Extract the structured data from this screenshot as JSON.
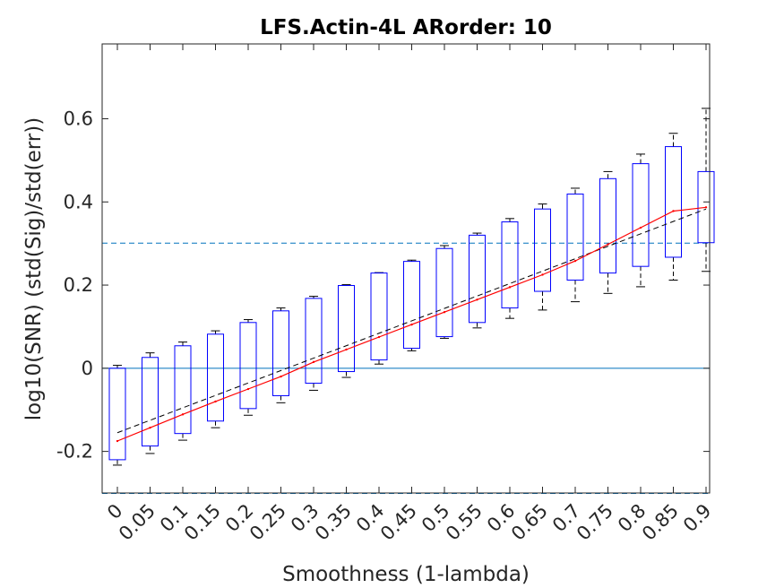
{
  "chart_data": {
    "type": "box",
    "title": "LFS.Actin-4L ARorder: 10",
    "xlabel": "Smoothness (1-lambda)",
    "ylabel": "log10(SNR) (std(Sig)/std(err))",
    "ylim": [
      -0.3,
      0.78
    ],
    "yticks": [
      "-0.2",
      "0",
      "0.2",
      "0.4",
      "0.6"
    ],
    "yticks_values": [
      -0.2,
      0,
      0.2,
      0.4,
      0.6
    ],
    "categories": [
      "0",
      "0.05",
      "0.1",
      "0.15",
      "0.2",
      "0.25",
      "0.3",
      "0.35",
      "0.4",
      "0.45",
      "0.5",
      "0.55",
      "0.6",
      "0.65",
      "0.7",
      "0.75",
      "0.8",
      "0.85",
      "0.9"
    ],
    "boxes": [
      {
        "whisker_low": -0.233,
        "q1": -0.22,
        "median": -0.175,
        "q3": 0.0,
        "whisker_high": 0.007
      },
      {
        "whisker_low": -0.205,
        "q1": -0.187,
        "median": -0.143,
        "q3": 0.026,
        "whisker_high": 0.037
      },
      {
        "whisker_low": -0.173,
        "q1": -0.157,
        "median": -0.111,
        "q3": 0.054,
        "whisker_high": 0.063
      },
      {
        "whisker_low": -0.143,
        "q1": -0.127,
        "median": -0.08,
        "q3": 0.082,
        "whisker_high": 0.09
      },
      {
        "whisker_low": -0.113,
        "q1": -0.097,
        "median": -0.05,
        "q3": 0.11,
        "whisker_high": 0.117
      },
      {
        "whisker_low": -0.083,
        "q1": -0.066,
        "median": -0.02,
        "q3": 0.138,
        "whisker_high": 0.145
      },
      {
        "whisker_low": -0.053,
        "q1": -0.036,
        "median": 0.015,
        "q3": 0.168,
        "whisker_high": 0.173
      },
      {
        "whisker_low": -0.022,
        "q1": -0.008,
        "median": 0.045,
        "q3": 0.199,
        "whisker_high": 0.201
      },
      {
        "whisker_low": 0.01,
        "q1": 0.02,
        "median": 0.075,
        "q3": 0.229,
        "whisker_high": 0.23
      },
      {
        "whisker_low": 0.042,
        "q1": 0.048,
        "median": 0.105,
        "q3": 0.257,
        "whisker_high": 0.26
      },
      {
        "whisker_low": 0.072,
        "q1": 0.076,
        "median": 0.135,
        "q3": 0.288,
        "whisker_high": 0.295
      },
      {
        "whisker_low": 0.097,
        "q1": 0.11,
        "median": 0.165,
        "q3": 0.32,
        "whisker_high": 0.325
      },
      {
        "whisker_low": 0.12,
        "q1": 0.145,
        "median": 0.195,
        "q3": 0.352,
        "whisker_high": 0.36
      },
      {
        "whisker_low": 0.14,
        "q1": 0.185,
        "median": 0.225,
        "q3": 0.383,
        "whisker_high": 0.395
      },
      {
        "whisker_low": 0.16,
        "q1": 0.212,
        "median": 0.258,
        "q3": 0.419,
        "whisker_high": 0.433
      },
      {
        "whisker_low": 0.18,
        "q1": 0.229,
        "median": 0.298,
        "q3": 0.456,
        "whisker_high": 0.473
      },
      {
        "whisker_low": 0.196,
        "q1": 0.245,
        "median": 0.338,
        "q3": 0.492,
        "whisker_high": 0.515
      },
      {
        "whisker_low": 0.212,
        "q1": 0.267,
        "median": 0.378,
        "q3": 0.533,
        "whisker_high": 0.565
      },
      {
        "whisker_low": 0.233,
        "q1": 0.302,
        "median": 0.387,
        "q3": 0.473,
        "whisker_high": 0.625
      }
    ],
    "median_line": [
      -0.175,
      -0.143,
      -0.111,
      -0.08,
      -0.05,
      -0.02,
      0.015,
      0.045,
      0.075,
      0.105,
      0.135,
      0.165,
      0.195,
      0.225,
      0.258,
      0.298,
      0.338,
      0.378,
      0.387
    ],
    "trend_line": {
      "start": -0.155,
      "end": 0.383
    },
    "reference_lines": [
      {
        "y": 0,
        "style": "solid"
      },
      {
        "y": 0.301,
        "style": "dashed"
      },
      {
        "y": -0.301,
        "style": "dashed"
      }
    ],
    "colors": {
      "box": "#0000ff",
      "whisker": "#000000",
      "median_line": "#ff0000",
      "trend_line": "#000000",
      "reference_line": "#0072bd",
      "axes": "#262626"
    },
    "grid": false
  }
}
